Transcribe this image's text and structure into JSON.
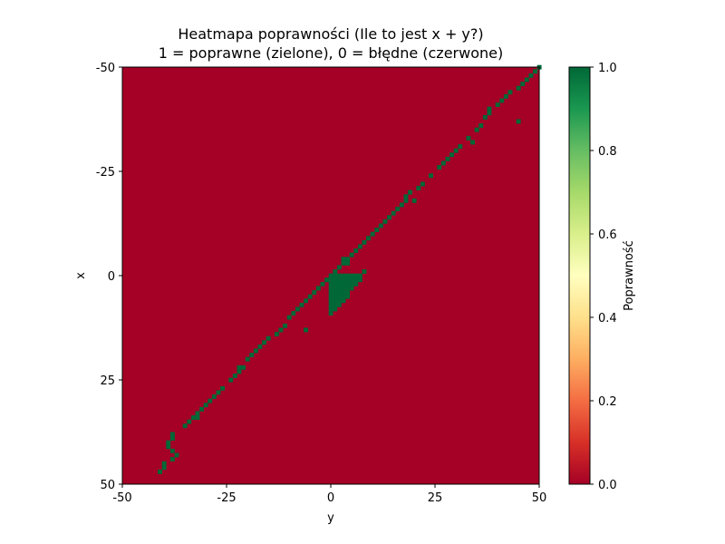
{
  "chart_data": {
    "type": "heatmap",
    "title": "Heatmapa poprawności (Ile to jest x + y?)",
    "subtitle": "1 = poprawne (zielone), 0 = błędne (czerwone)",
    "xlabel": "y",
    "ylabel": "x",
    "xlim": [
      -50,
      50
    ],
    "ylim": [
      -50,
      50
    ],
    "y_axis_inverted": true,
    "x_ticks": [
      "-50",
      "-25",
      "0",
      "25",
      "50"
    ],
    "y_ticks": [
      "-50",
      "-25",
      "0",
      "25",
      "50"
    ],
    "colormap": "RdYlGn",
    "colorbar": {
      "label": "Poprawność",
      "range": [
        0,
        1
      ],
      "ticks": [
        "0.0",
        "0.2",
        "0.4",
        "0.6",
        "0.8",
        "1.0"
      ]
    },
    "default_value": 0,
    "colors": {
      "incorrect": "#a50026",
      "correct": "#006837"
    },
    "correct_points": [
      [
        -50,
        50
      ],
      [
        -49,
        49
      ],
      [
        -48,
        48
      ],
      [
        -47,
        47
      ],
      [
        -46,
        46
      ],
      [
        -45,
        45
      ],
      [
        -44,
        43
      ],
      [
        -43,
        42
      ],
      [
        -42,
        41
      ],
      [
        -41,
        40
      ],
      [
        -40,
        38
      ],
      [
        -39,
        38
      ],
      [
        -38,
        37
      ],
      [
        -37,
        45
      ],
      [
        -36,
        36
      ],
      [
        -35,
        35
      ],
      [
        -33,
        33
      ],
      [
        -32,
        34
      ],
      [
        -31,
        31
      ],
      [
        -30,
        30
      ],
      [
        -29,
        29
      ],
      [
        -28,
        28
      ],
      [
        -27,
        27
      ],
      [
        -26,
        26
      ],
      [
        -24,
        24
      ],
      [
        -22,
        22
      ],
      [
        -21,
        21
      ],
      [
        -20,
        19
      ],
      [
        -19,
        18
      ],
      [
        -18,
        18
      ],
      [
        -18,
        20
      ],
      [
        -17,
        17
      ],
      [
        -16,
        16
      ],
      [
        -15,
        15
      ],
      [
        -14,
        14
      ],
      [
        -13,
        13
      ],
      [
        -12,
        12
      ],
      [
        -11,
        11
      ],
      [
        -10,
        10
      ],
      [
        -9,
        9
      ],
      [
        -8,
        8
      ],
      [
        -7,
        7
      ],
      [
        -6,
        6
      ],
      [
        -5,
        5
      ],
      [
        -4,
        4
      ],
      [
        -3,
        3
      ],
      [
        -2,
        2
      ],
      [
        -1,
        1
      ],
      [
        1,
        -1
      ],
      [
        2,
        -2
      ],
      [
        3,
        -3
      ],
      [
        4,
        -4
      ],
      [
        5,
        -5
      ],
      [
        6,
        -6
      ],
      [
        7,
        -7
      ],
      [
        8,
        -8
      ],
      [
        9,
        -9
      ],
      [
        10,
        -10
      ],
      [
        13,
        -6
      ],
      [
        12,
        -11
      ],
      [
        13,
        -12
      ],
      [
        14,
        -13
      ],
      [
        15,
        -15
      ],
      [
        16,
        -16
      ],
      [
        17,
        -17
      ],
      [
        18,
        -18
      ],
      [
        19,
        -19
      ],
      [
        20,
        -20
      ],
      [
        22,
        -21
      ],
      [
        22,
        -22
      ],
      [
        23,
        -22
      ],
      [
        24,
        -23
      ],
      [
        25,
        -24
      ],
      [
        27,
        -26
      ],
      [
        28,
        -27
      ],
      [
        29,
        -28
      ],
      [
        30,
        -29
      ],
      [
        31,
        -30
      ],
      [
        32,
        -31
      ],
      [
        33,
        -32
      ],
      [
        34,
        -32
      ],
      [
        34,
        -33
      ],
      [
        35,
        -34
      ],
      [
        36,
        -35
      ],
      [
        38,
        -38
      ],
      [
        39,
        -38
      ],
      [
        40,
        -39
      ],
      [
        41,
        -39
      ],
      [
        42,
        -38
      ],
      [
        43,
        -37
      ],
      [
        44,
        -38
      ],
      [
        45,
        -40
      ],
      [
        46,
        -40
      ],
      [
        47,
        -41
      ]
    ],
    "correct_region": {
      "description_free": true,
      "rows": [
        [
          0,
          0,
          7
        ],
        [
          1,
          0,
          7
        ],
        [
          2,
          0,
          6
        ],
        [
          3,
          0,
          5
        ],
        [
          4,
          0,
          4
        ],
        [
          5,
          0,
          4
        ],
        [
          6,
          0,
          3
        ],
        [
          7,
          0,
          2
        ],
        [
          8,
          0,
          1
        ],
        [
          9,
          0,
          0
        ]
      ]
    },
    "extra_points": [
      [
        -3,
        4
      ],
      [
        -4,
        3
      ],
      [
        -1,
        8
      ]
    ]
  }
}
